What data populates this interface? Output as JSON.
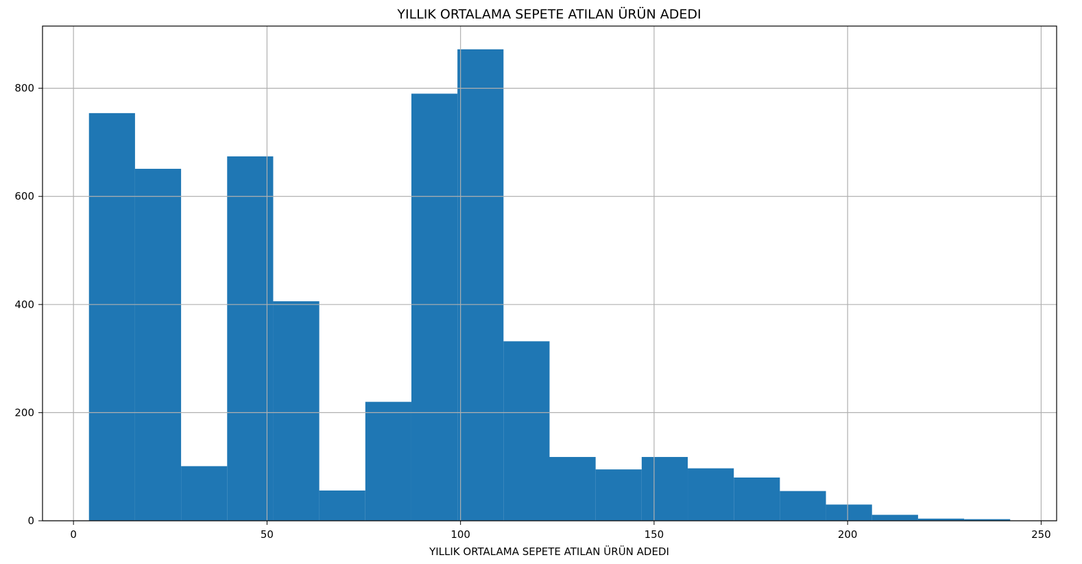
{
  "chart_data": {
    "type": "bar",
    "title": "YILLIK ORTALAMA SEPETE ATILAN ÜRÜN ADEDI",
    "xlabel": "YILLIK ORTALAMA SEPETE ATILAN ÜRÜN ADEDI",
    "ylabel": "",
    "bin_edges": [
      4,
      15.9,
      27.8,
      39.7,
      51.6,
      63.5,
      75.4,
      87.3,
      99.2,
      111.1,
      123.0,
      134.9,
      146.8,
      158.7,
      170.6,
      182.5,
      194.4,
      206.3,
      218.2,
      230.1,
      242.0
    ],
    "values": [
      754,
      651,
      101,
      674,
      406,
      56,
      220,
      790,
      872,
      332,
      118,
      95,
      118,
      97,
      80,
      55,
      30,
      11,
      4,
      3
    ],
    "xlim": [
      -8,
      254
    ],
    "ylim": [
      0,
      915
    ],
    "xticks": [
      0,
      50,
      100,
      150,
      200,
      250
    ],
    "yticks": [
      0,
      200,
      400,
      600,
      800
    ],
    "grid": true,
    "bar_color": "#1f77b4"
  }
}
